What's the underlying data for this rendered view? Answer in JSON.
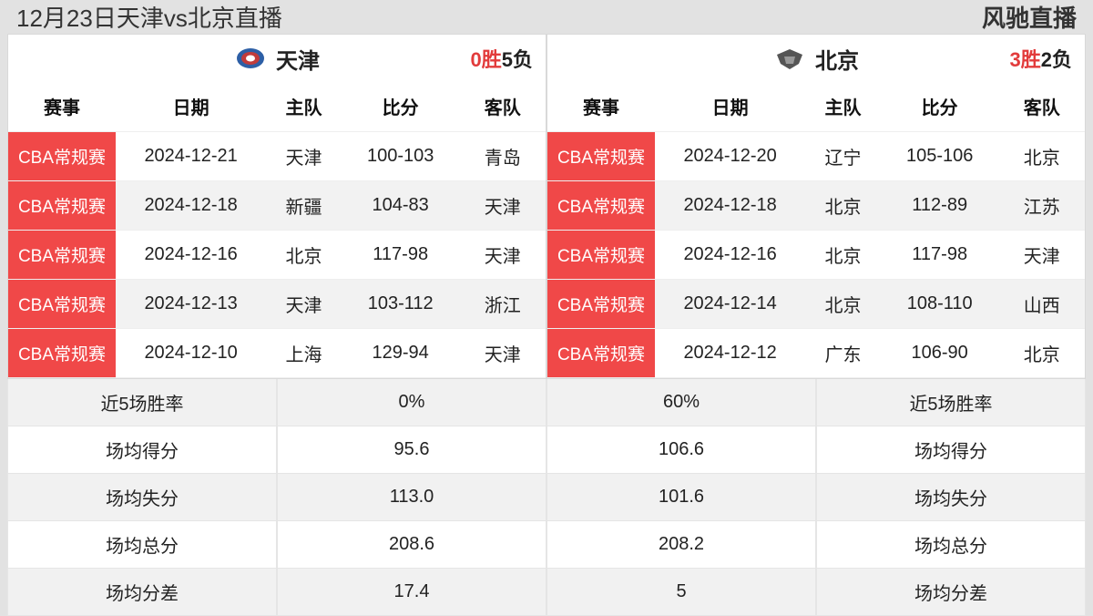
{
  "header": {
    "title": "12月23日天津vs北京直播",
    "brand": "风驰直播"
  },
  "colors": {
    "badge_bg": "#f04848",
    "badge_text": "#ffffff",
    "record_red": "#e23b3b",
    "page_bg": "#e2e2e2",
    "panel_bg": "#ffffff",
    "alt_row_bg": "#f2f2f2",
    "border": "#e5e5e5",
    "text": "#222222"
  },
  "columns": {
    "event": "赛事",
    "date": "日期",
    "home": "主队",
    "score": "比分",
    "away": "客队"
  },
  "teams": {
    "left": {
      "name": "天津",
      "record_win": "0胜",
      "record_loss": "5负",
      "rows": [
        {
          "event": "CBA常规赛",
          "date": "2024-12-21",
          "home": "天津",
          "score": "100-103",
          "away": "青岛"
        },
        {
          "event": "CBA常规赛",
          "date": "2024-12-18",
          "home": "新疆",
          "score": "104-83",
          "away": "天津"
        },
        {
          "event": "CBA常规赛",
          "date": "2024-12-16",
          "home": "北京",
          "score": "117-98",
          "away": "天津"
        },
        {
          "event": "CBA常规赛",
          "date": "2024-12-13",
          "home": "天津",
          "score": "103-112",
          "away": "浙江"
        },
        {
          "event": "CBA常规赛",
          "date": "2024-12-10",
          "home": "上海",
          "score": "129-94",
          "away": "天津"
        }
      ]
    },
    "right": {
      "name": "北京",
      "record_win": "3胜",
      "record_loss": "2负",
      "rows": [
        {
          "event": "CBA常规赛",
          "date": "2024-12-20",
          "home": "辽宁",
          "score": "105-106",
          "away": "北京"
        },
        {
          "event": "CBA常规赛",
          "date": "2024-12-18",
          "home": "北京",
          "score": "112-89",
          "away": "江苏"
        },
        {
          "event": "CBA常规赛",
          "date": "2024-12-16",
          "home": "北京",
          "score": "117-98",
          "away": "天津"
        },
        {
          "event": "CBA常规赛",
          "date": "2024-12-14",
          "home": "北京",
          "score": "108-110",
          "away": "山西"
        },
        {
          "event": "CBA常规赛",
          "date": "2024-12-12",
          "home": "广东",
          "score": "106-90",
          "away": "北京"
        }
      ]
    }
  },
  "stats": {
    "labels": {
      "winrate": "近5场胜率",
      "avg_score": "场均得分",
      "avg_concede": "场均失分",
      "avg_total": "场均总分",
      "avg_margin": "场均分差"
    },
    "left": {
      "winrate": "0%",
      "avg_score": "95.6",
      "avg_concede": "113.0",
      "avg_total": "208.6",
      "avg_margin": "17.4"
    },
    "right": {
      "winrate": "60%",
      "avg_score": "106.6",
      "avg_concede": "101.6",
      "avg_total": "208.2",
      "avg_margin": "5"
    }
  }
}
